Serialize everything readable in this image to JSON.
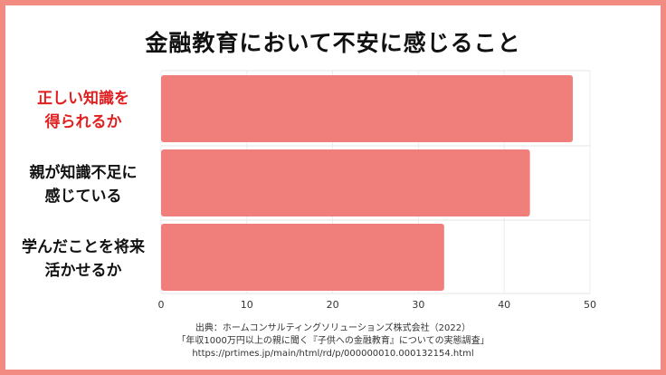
{
  "chart_data": {
    "type": "bar",
    "orientation": "horizontal",
    "title": "金融教育において不安に感じること",
    "categories": [
      [
        "正しい知識を",
        "得られるか"
      ],
      [
        "親が知識不足に",
        "感じている"
      ],
      [
        "学んだことを将来",
        "活かせるか"
      ]
    ],
    "values": [
      48,
      43,
      33
    ],
    "xlim": [
      0,
      50
    ],
    "xticks": [
      "0",
      "10",
      "20",
      "30",
      "40",
      "50"
    ],
    "grid": true,
    "colors": {
      "bar": "#f07f7b",
      "highlight_label": "#e02020",
      "label": "#111111",
      "border": "#f28b82"
    },
    "highlight_index": 0
  },
  "source": {
    "line1": "出典：ホームコンサルティングソリューションズ株式会社（2022）",
    "line2": "「年収1000万円以上の親に聞く『子供への金融教育』についての実態調査」",
    "line3": "https://prtimes.jp/main/html/rd/p/000000010.000132154.html"
  }
}
